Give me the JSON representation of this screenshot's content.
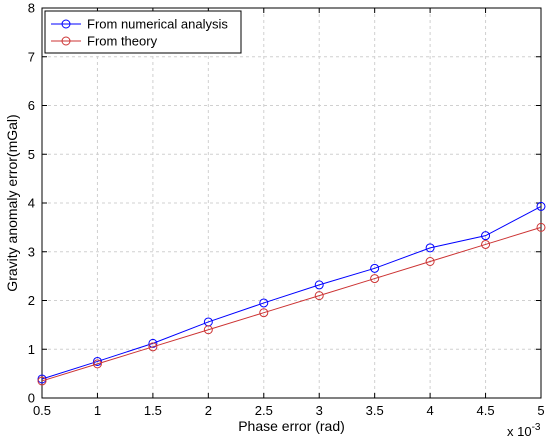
{
  "chart_data": {
    "type": "line",
    "xlabel": "Phase error (rad)",
    "ylabel": "Gravity anomaly error(mGal)",
    "x_multiplier": {
      "base": "x 10",
      "exponent": "-3"
    },
    "xlim": [
      0.5,
      5
    ],
    "ylim": [
      0,
      8
    ],
    "xticks": [
      0.5,
      1,
      1.5,
      2,
      2.5,
      3,
      3.5,
      4,
      4.5,
      5
    ],
    "xtick_labels": [
      "0.5",
      "1",
      "1.5",
      "2",
      "2.5",
      "3",
      "3.5",
      "4",
      "4.5",
      "5"
    ],
    "yticks": [
      0,
      1,
      2,
      3,
      4,
      5,
      6,
      7,
      8
    ],
    "ytick_labels": [
      "0",
      "1",
      "2",
      "3",
      "4",
      "5",
      "6",
      "7",
      "8"
    ],
    "grid": true,
    "legend_position": "top-left",
    "series": [
      {
        "name": "From numerical analysis",
        "color": "#0000ff",
        "marker": "circle",
        "x": [
          0.5,
          1,
          1.5,
          2,
          2.5,
          3,
          3.5,
          4,
          4.5,
          5
        ],
        "y": [
          0.39,
          0.75,
          1.12,
          1.56,
          1.95,
          2.32,
          2.66,
          3.08,
          3.33,
          3.93
        ]
      },
      {
        "name": "From theory",
        "color": "#cc3333",
        "marker": "circle",
        "x": [
          0.5,
          1,
          1.5,
          2,
          2.5,
          3,
          3.5,
          4,
          4.5,
          5
        ],
        "y": [
          0.35,
          0.7,
          1.05,
          1.4,
          1.75,
          2.1,
          2.45,
          2.8,
          3.15,
          3.5
        ]
      }
    ]
  }
}
